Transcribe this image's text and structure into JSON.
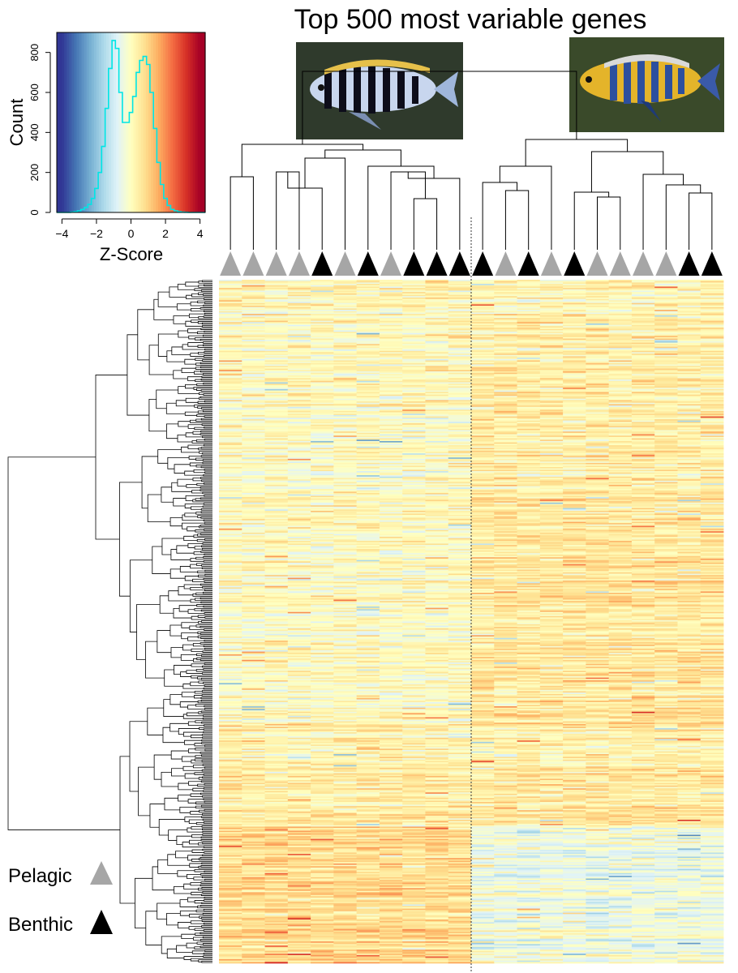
{
  "title": "Top 500 most variable genes",
  "photos": [
    {
      "name": "pelagic-fish-photo",
      "icon": "striped-cichlid-photo"
    },
    {
      "name": "benthic-fish-photo",
      "icon": "yellow-blue-cichlid-photo"
    }
  ],
  "legend": {
    "pelagic_label": "Pelagic",
    "benthic_label": "Benthic",
    "pelagic_color": "#a6a6a6",
    "benthic_color": "#000000"
  },
  "samples": [
    "pelagic",
    "pelagic",
    "pelagic",
    "pelagic",
    "benthic",
    "pelagic",
    "benthic",
    "pelagic",
    "benthic",
    "benthic",
    "benthic",
    "benthic",
    "pelagic",
    "benthic",
    "pelagic",
    "benthic",
    "pelagic",
    "pelagic",
    "pelagic",
    "pelagic",
    "benthic",
    "benthic"
  ],
  "colors": {
    "line": "#00e5e5",
    "scale": [
      "#313695",
      "#4575b4",
      "#74add1",
      "#abd9e9",
      "#e0f3f8",
      "#ffffbf",
      "#fee090",
      "#fdae61",
      "#f46d43",
      "#d73027",
      "#a50026"
    ]
  },
  "chart_data": [
    {
      "type": "histogram",
      "name": "color-key",
      "xlabel": "Z-Score",
      "ylabel": "Count",
      "xticks": [
        -4,
        -2,
        0,
        2,
        4
      ],
      "yticks": [
        0,
        200,
        400,
        600,
        800
      ],
      "xlim": [
        -4.3,
        4.3
      ],
      "ylim": [
        0,
        900
      ],
      "bin_width": 0.2,
      "x": [
        -4.2,
        -4.0,
        -3.8,
        -3.6,
        -3.4,
        -3.2,
        -3.0,
        -2.8,
        -2.6,
        -2.4,
        -2.2,
        -2.0,
        -1.8,
        -1.6,
        -1.4,
        -1.2,
        -1.0,
        -0.8,
        -0.6,
        -0.4,
        -0.2,
        0.0,
        0.2,
        0.4,
        0.6,
        0.8,
        1.0,
        1.2,
        1.4,
        1.6,
        1.8,
        2.0,
        2.2,
        2.4,
        2.6,
        2.8,
        3.0,
        3.2,
        3.4,
        3.6,
        3.8,
        4.0,
        4.2
      ],
      "values": [
        0,
        0,
        0,
        0,
        2,
        4,
        8,
        15,
        25,
        40,
        70,
        120,
        200,
        330,
        520,
        720,
        860,
        820,
        600,
        450,
        450,
        500,
        580,
        700,
        760,
        780,
        740,
        600,
        420,
        250,
        140,
        70,
        35,
        15,
        8,
        4,
        2,
        1,
        0,
        0,
        0,
        0,
        0
      ]
    },
    {
      "type": "heatmap",
      "name": "expression-heatmap",
      "title": "Top 500 most variable genes",
      "n_genes": 500,
      "n_samples": 22,
      "cluster_split_after_sample": 11,
      "color_range": [
        -4,
        4
      ]
    }
  ]
}
